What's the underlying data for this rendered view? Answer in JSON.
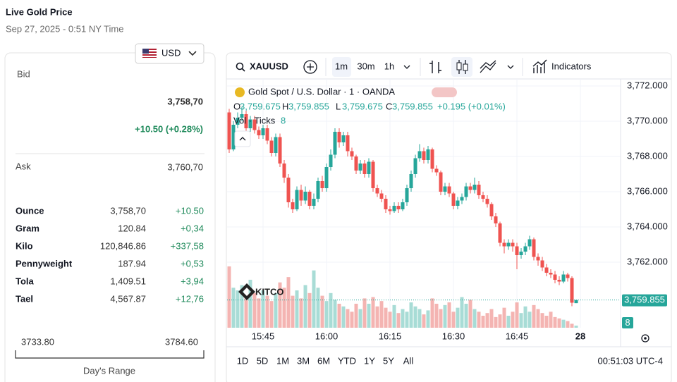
{
  "header": {
    "title": "Live Gold Price",
    "timestamp": "Sep 27, 2025 - 0:51 NY Time"
  },
  "currency": "USD",
  "quote": {
    "bid_label": "Bid",
    "bid": "3,758,70",
    "change": "+10.50 (+0.28%)",
    "ask_label": "Ask",
    "ask": "3,760,70"
  },
  "units": {
    "rows": [
      [
        "Ounce",
        "3,758,70",
        "+10.50"
      ],
      [
        "Gram",
        "120.84",
        "+0,34"
      ],
      [
        "Kilo",
        "120,846.86",
        "+337,58"
      ],
      [
        "Pennyweight",
        "187.94",
        "+0,53"
      ],
      [
        "Tola",
        "1,409.51",
        "+3,94"
      ],
      [
        "Tael",
        "4,567.87",
        "+12,76"
      ]
    ]
  },
  "day_range": {
    "low": "3733.80",
    "high": "3784.60",
    "label": "Day's Range"
  },
  "toolbar": {
    "symbol": "XAUUSD",
    "intervals": [
      "1m",
      "30m",
      "1h"
    ],
    "indicators": "Indicators"
  },
  "chart_data": {
    "type": "candlestick",
    "title": "Gold Spot / U.S. Dollar · 1 · OANDA",
    "ohlc_legend": [
      {
        "key": "O",
        "value": "3,759.675"
      },
      {
        "key": "H",
        "value": "3,759.855"
      },
      {
        "key": "L",
        "value": "3,759.675"
      },
      {
        "key": "C",
        "value": "3,759.855"
      }
    ],
    "change": "+0.195 (+0.01%)",
    "volume_legend": "Vol · Ticks",
    "volume_last": 8,
    "watermark": "KITCO",
    "up_color": "#26a69a",
    "down_color": "#ef5350",
    "volume_up_color": "#a8dcd6",
    "volume_down_color": "#f4b4b2",
    "grid": true,
    "categories": [
      null,
      null,
      null,
      null,
      null,
      null,
      null,
      null,
      "15:45",
      null,
      null,
      null,
      null,
      null,
      null,
      null,
      null,
      null,
      null,
      null,
      null,
      null,
      null,
      "16:00",
      null,
      null,
      null,
      null,
      null,
      null,
      null,
      null,
      null,
      null,
      null,
      null,
      null,
      null,
      "16:15",
      null,
      null,
      null,
      null,
      null,
      null,
      null,
      null,
      null,
      null,
      null,
      null,
      null,
      null,
      "16:30",
      null,
      null,
      null,
      null,
      null,
      null,
      null,
      null,
      null,
      null,
      null,
      null,
      null,
      null,
      "16:45",
      null,
      null,
      null,
      null,
      null,
      null,
      null,
      null,
      null,
      null,
      null,
      null,
      null,
      null,
      "28"
    ],
    "open": [
      3770.5,
      3768.4,
      3769.8,
      3770.2,
      3770.4,
      3769.6,
      3770.1,
      3769.5,
      3769.2,
      3769.6,
      3768.9,
      3768.2,
      3769.1,
      3767.6,
      3766.8,
      3765.4,
      3765.0,
      3766.1,
      3765.5,
      3766.0,
      3765.2,
      3765.6,
      3766.6,
      3766.2,
      3767.4,
      3768.1,
      3769.4,
      3768.8,
      3769.2,
      3768.3,
      3768.0,
      3767.2,
      3767.6,
      3767.0,
      3767.7,
      3766.2,
      3765.9,
      3765.6,
      3765.0,
      3764.9,
      3765.2,
      3765.0,
      3765.4,
      3766.2,
      3767.0,
      3767.9,
      3768.3,
      3767.8,
      3768.4,
      3767.3,
      3767.1,
      3766.0,
      3766.3,
      3765.9,
      3765.2,
      3765.5,
      3765.7,
      3766.3,
      3766.1,
      3766.4,
      3765.8,
      3765.6,
      3765.3,
      3764.6,
      3764.2,
      3763.1,
      3762.9,
      3763.1,
      3762.9,
      3762.4,
      3762.6,
      3762.9,
      3763.3,
      3762.3,
      3762.1,
      3761.7,
      3761.4,
      3761.3,
      3761.0,
      3760.9,
      3761.3,
      3761.1,
      3759.675,
      null
    ],
    "high": [
      3770.7,
      3770.0,
      3770.5,
      3770.8,
      3770.6,
      3770.3,
      3770.3,
      3769.7,
      3769.8,
      3769.8,
      3769.1,
      3769.3,
      3769.3,
      3767.8,
      3767.0,
      3765.6,
      3766.3,
      3766.4,
      3766.3,
      3766.1,
      3765.9,
      3766.8,
      3766.9,
      3767.6,
      3768.4,
      3769.6,
      3769.6,
      3769.4,
      3769.4,
      3768.5,
      3768.1,
      3767.8,
      3767.8,
      3767.9,
      3767.8,
      3766.4,
      3766.1,
      3765.8,
      3765.2,
      3765.4,
      3765.4,
      3765.6,
      3766.4,
      3767.2,
      3768.1,
      3768.7,
      3768.5,
      3768.6,
      3768.5,
      3767.5,
      3767.2,
      3766.5,
      3766.5,
      3766.0,
      3765.7,
      3765.9,
      3766.5,
      3766.5,
      3766.8,
      3766.6,
      3766.0,
      3765.8,
      3765.4,
      3764.8,
      3764.3,
      3763.3,
      3763.3,
      3763.3,
      3763.1,
      3762.8,
      3763.1,
      3763.5,
      3763.4,
      3762.5,
      3762.3,
      3761.9,
      3761.6,
      3761.5,
      3761.2,
      3761.5,
      3761.4,
      3761.2,
      3759.855,
      null
    ],
    "low": [
      3768.2,
      3768.3,
      3769.6,
      3770.0,
      3769.4,
      3769.4,
      3769.3,
      3769.0,
      3769.0,
      3768.7,
      3768.0,
      3768.0,
      3767.4,
      3766.5,
      3765.1,
      3764.8,
      3764.9,
      3765.2,
      3765.3,
      3765.0,
      3765.0,
      3765.4,
      3766.0,
      3766.0,
      3767.2,
      3767.9,
      3768.5,
      3768.6,
      3768.0,
      3767.8,
      3767.0,
      3767.0,
      3766.8,
      3766.8,
      3766.0,
      3765.7,
      3765.4,
      3764.8,
      3764.7,
      3764.8,
      3764.8,
      3764.9,
      3765.2,
      3766.0,
      3766.8,
      3767.7,
      3767.6,
      3767.6,
      3767.1,
      3766.9,
      3765.8,
      3765.8,
      3765.7,
      3765.0,
      3765.0,
      3765.3,
      3765.5,
      3765.9,
      3765.9,
      3765.6,
      3765.4,
      3765.1,
      3764.4,
      3764.0,
      3762.9,
      3762.5,
      3762.7,
      3762.6,
      3761.6,
      3762.2,
      3762.4,
      3762.7,
      3762.1,
      3761.8,
      3761.5,
      3761.2,
      3761.1,
      3760.8,
      3760.7,
      3760.8,
      3760.9,
      3759.5,
      3759.675,
      null
    ],
    "close": [
      3768.4,
      3769.8,
      3770.2,
      3770.4,
      3769.6,
      3770.1,
      3769.5,
      3769.2,
      3769.6,
      3768.9,
      3768.2,
      3769.1,
      3767.6,
      3766.8,
      3765.4,
      3765.0,
      3766.1,
      3765.5,
      3766.0,
      3765.2,
      3765.6,
      3766.6,
      3766.2,
      3767.4,
      3768.1,
      3769.4,
      3768.8,
      3769.2,
      3768.3,
      3768.0,
      3767.2,
      3767.6,
      3767.0,
      3767.7,
      3766.2,
      3765.9,
      3765.6,
      3765.0,
      3764.9,
      3765.2,
      3765.0,
      3765.4,
      3766.2,
      3767.0,
      3767.9,
      3768.3,
      3767.8,
      3768.4,
      3767.3,
      3767.1,
      3766.0,
      3766.3,
      3765.9,
      3765.2,
      3765.5,
      3765.7,
      3766.3,
      3766.1,
      3766.4,
      3765.8,
      3765.6,
      3765.3,
      3764.6,
      3764.2,
      3763.1,
      3762.9,
      3763.1,
      3762.9,
      3762.4,
      3762.6,
      3762.9,
      3763.3,
      3762.3,
      3762.1,
      3761.7,
      3761.4,
      3761.3,
      3761.0,
      3760.9,
      3761.3,
      3761.1,
      3759.7,
      3759.855,
      null
    ],
    "volume": [
      230,
      150,
      140,
      160,
      120,
      180,
      130,
      110,
      140,
      120,
      100,
      130,
      170,
      150,
      190,
      120,
      140,
      110,
      160,
      130,
      215,
      150,
      120,
      100,
      130,
      105,
      90,
      80,
      70,
      60,
      90,
      70,
      110,
      90,
      115,
      80,
      100,
      75,
      60,
      85,
      55,
      70,
      60,
      95,
      80,
      70,
      50,
      65,
      110,
      90,
      70,
      85,
      95,
      60,
      75,
      115,
      90,
      105,
      70,
      60,
      45,
      55,
      70,
      40,
      50,
      75,
      45,
      60,
      95,
      55,
      80,
      60,
      85,
      70,
      55,
      45,
      60,
      40,
      35,
      30,
      25,
      15,
      8,
      null
    ],
    "ylim": [
      3758.28,
      3772.4
    ],
    "yticks": [
      {
        "value": 3762,
        "label": "3,762.000"
      },
      {
        "value": 3764,
        "label": "3,764.000"
      },
      {
        "value": 3766,
        "label": "3,766.000"
      },
      {
        "value": 3768,
        "label": "3,768.000"
      },
      {
        "value": 3770,
        "label": "3,770.000"
      },
      {
        "value": 3772,
        "label": "3,772.000"
      }
    ],
    "price_marker": {
      "value": 3759.855,
      "label": "3,759.855"
    }
  },
  "ranges": [
    "1D",
    "5D",
    "1M",
    "3M",
    "6M",
    "YTD",
    "1Y",
    "5Y",
    "All"
  ],
  "clock": "00:51:03 UTC-4"
}
